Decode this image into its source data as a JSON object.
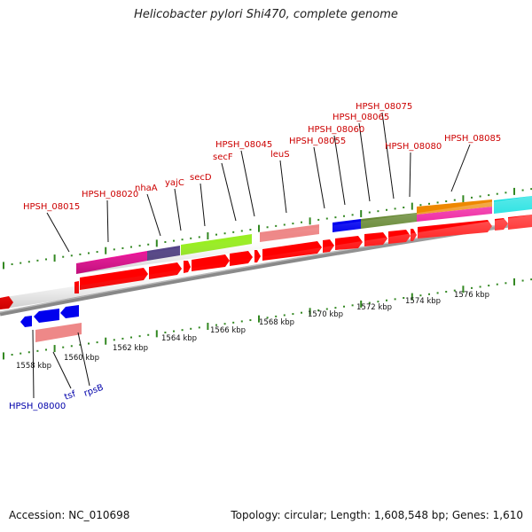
{
  "title": "Helicobacter pylori Shi470, complete genome",
  "footer": {
    "accession": "Accession: NC_010698",
    "summary": "Topology: circular; Length: 1,608,548 bp; Genes: 1,610"
  },
  "axis_labels": [
    "1558 kbp",
    "1560 kbp",
    "1562 kbp",
    "1564 kbp",
    "1566 kbp",
    "1568 kbp",
    "1570 kbp",
    "1572 kbp",
    "1574 kbp",
    "1576 kbp"
  ],
  "upper_labels": [
    "HPSH_08015",
    "HPSH_08020",
    "nhaA",
    "yajC",
    "secD",
    "secF",
    "HPSH_08045",
    "leuS",
    "HPSH_08055",
    "HPSH_08060",
    "HPSH_08065",
    "HPSH_08075",
    "HPSH_08080",
    "HPSH_08085"
  ],
  "lower_labels": [
    "HPSH_08000",
    "tsf",
    "rpsB"
  ],
  "colors": {
    "red_gene": "#ff0000",
    "blue_gene": "#0000ee",
    "magenta": "#ee1199",
    "purple": "#554488",
    "lime": "#99ee22",
    "salmon": "#ee8888",
    "olive": "#668833",
    "orange": "#ee8800",
    "cyan": "#00dddd",
    "tick_green": "#338822",
    "backbone": "#888888"
  }
}
